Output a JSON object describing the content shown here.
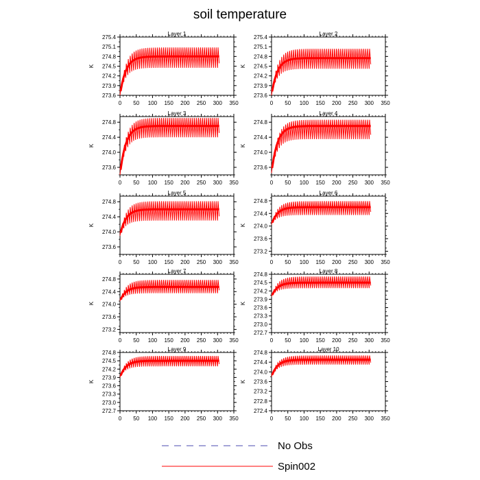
{
  "figure": {
    "title": "soil temperature",
    "legend": [
      {
        "label": "No Obs",
        "color": "#4a4ab0",
        "style": "dashed"
      },
      {
        "label": "Spin002",
        "color": "#ff0000",
        "style": "solid"
      }
    ]
  },
  "chart_data": [
    {
      "type": "line",
      "title": "Layer 1",
      "xlabel": "",
      "ylabel": "K",
      "xlim": [
        0,
        350
      ],
      "ylim": [
        273.6,
        275.4
      ],
      "xticks": [
        0,
        50,
        100,
        150,
        200,
        250,
        300,
        350
      ],
      "yticks": [
        273.6,
        273.9,
        274.2,
        274.5,
        274.8,
        275.1,
        275.4
      ],
      "series": [
        {
          "name": "Spin002",
          "color": "#ff0000",
          "x_range": [
            0,
            305
          ],
          "start": 273.6,
          "low": 274.45,
          "high": 275.12,
          "mean": 274.8
        }
      ]
    },
    {
      "type": "line",
      "title": "Layer 2",
      "xlabel": "",
      "ylabel": "K",
      "xlim": [
        0,
        350
      ],
      "ylim": [
        273.6,
        275.4
      ],
      "xticks": [
        0,
        50,
        100,
        150,
        200,
        250,
        300,
        350
      ],
      "yticks": [
        273.6,
        273.9,
        274.2,
        274.5,
        274.8,
        275.1,
        275.4
      ],
      "series": [
        {
          "name": "Spin002",
          "color": "#ff0000",
          "x_range": [
            0,
            305
          ],
          "start": 273.6,
          "low": 274.42,
          "high": 275.08,
          "mean": 274.75
        }
      ]
    },
    {
      "type": "line",
      "title": "Layer 3",
      "xlabel": "",
      "ylabel": "K",
      "xlim": [
        0,
        350
      ],
      "ylim": [
        273.4,
        274.95
      ],
      "xticks": [
        0,
        50,
        100,
        150,
        200,
        250,
        300,
        350
      ],
      "yticks": [
        273.6,
        274.0,
        274.4,
        274.8
      ],
      "series": [
        {
          "name": "Spin002",
          "color": "#ff0000",
          "x_range": [
            0,
            305
          ],
          "start": 273.4,
          "low": 274.4,
          "high": 274.95,
          "mean": 274.7
        }
      ]
    },
    {
      "type": "line",
      "title": "Layer 4",
      "xlabel": "",
      "ylabel": "K",
      "xlim": [
        0,
        350
      ],
      "ylim": [
        273.4,
        274.95
      ],
      "xticks": [
        0,
        50,
        100,
        150,
        200,
        250,
        300,
        350
      ],
      "yticks": [
        273.6,
        274.0,
        274.4,
        274.8
      ],
      "series": [
        {
          "name": "Spin002",
          "color": "#ff0000",
          "x_range": [
            0,
            305
          ],
          "start": 273.45,
          "low": 274.35,
          "high": 274.9,
          "mean": 274.7
        }
      ]
    },
    {
      "type": "line",
      "title": "Layer 5",
      "xlabel": "",
      "ylabel": "K",
      "xlim": [
        0,
        350
      ],
      "ylim": [
        273.4,
        274.95
      ],
      "xticks": [
        0,
        50,
        100,
        150,
        200,
        250,
        300,
        350
      ],
      "yticks": [
        273.6,
        274.0,
        274.4,
        274.8
      ],
      "series": [
        {
          "name": "Spin002",
          "color": "#ff0000",
          "x_range": [
            0,
            305
          ],
          "start": 273.9,
          "low": 274.3,
          "high": 274.85,
          "mean": 274.6
        }
      ]
    },
    {
      "type": "line",
      "title": "Layer 6",
      "xlabel": "",
      "ylabel": "K",
      "xlim": [
        0,
        350
      ],
      "ylim": [
        273.1,
        274.95
      ],
      "xticks": [
        0,
        50,
        100,
        150,
        200,
        250,
        300,
        350
      ],
      "yticks": [
        273.2,
        273.6,
        274.0,
        274.4,
        274.8
      ],
      "series": [
        {
          "name": "Spin002",
          "color": "#ff0000",
          "x_range": [
            0,
            305
          ],
          "start": 274.05,
          "low": 274.35,
          "high": 274.82,
          "mean": 274.6
        }
      ]
    },
    {
      "type": "line",
      "title": "Layer 7",
      "xlabel": "",
      "ylabel": "K",
      "xlim": [
        0,
        350
      ],
      "ylim": [
        273.1,
        274.95
      ],
      "xticks": [
        0,
        50,
        100,
        150,
        200,
        250,
        300,
        350
      ],
      "yticks": [
        273.2,
        273.6,
        274.0,
        274.4,
        274.8
      ],
      "series": [
        {
          "name": "Spin002",
          "color": "#ff0000",
          "x_range": [
            0,
            305
          ],
          "start": 274.1,
          "low": 274.35,
          "high": 274.8,
          "mean": 274.55
        }
      ]
    },
    {
      "type": "line",
      "title": "Layer 8",
      "xlabel": "",
      "ylabel": "K",
      "xlim": [
        0,
        350
      ],
      "ylim": [
        272.7,
        274.8
      ],
      "xticks": [
        0,
        50,
        100,
        150,
        200,
        250,
        300,
        350
      ],
      "yticks": [
        272.7,
        273.0,
        273.3,
        273.6,
        273.9,
        274.2,
        274.5,
        274.8
      ],
      "series": [
        {
          "name": "Spin002",
          "color": "#ff0000",
          "x_range": [
            0,
            305
          ],
          "start": 274.0,
          "low": 274.3,
          "high": 274.75,
          "mean": 274.5
        }
      ]
    },
    {
      "type": "line",
      "title": "Layer 9",
      "xlabel": "",
      "ylabel": "K",
      "xlim": [
        0,
        350
      ],
      "ylim": [
        272.7,
        274.8
      ],
      "xticks": [
        0,
        50,
        100,
        150,
        200,
        250,
        300,
        350
      ],
      "yticks": [
        272.7,
        273.0,
        273.3,
        273.6,
        273.9,
        274.2,
        274.5,
        274.8
      ],
      "series": [
        {
          "name": "Spin002",
          "color": "#ff0000",
          "x_range": [
            0,
            305
          ],
          "start": 273.9,
          "low": 274.3,
          "high": 274.7,
          "mean": 274.5
        }
      ]
    },
    {
      "type": "line",
      "title": "Layer 10",
      "xlabel": "",
      "ylabel": "K",
      "xlim": [
        0,
        350
      ],
      "ylim": [
        272.4,
        274.8
      ],
      "xticks": [
        0,
        50,
        100,
        150,
        200,
        250,
        300,
        350
      ],
      "yticks": [
        272.4,
        272.8,
        273.2,
        273.6,
        274.0,
        274.4,
        274.8
      ],
      "series": [
        {
          "name": "Spin002",
          "color": "#ff0000",
          "x_range": [
            0,
            305
          ],
          "start": 273.8,
          "low": 274.3,
          "high": 274.7,
          "mean": 274.5
        }
      ]
    }
  ]
}
